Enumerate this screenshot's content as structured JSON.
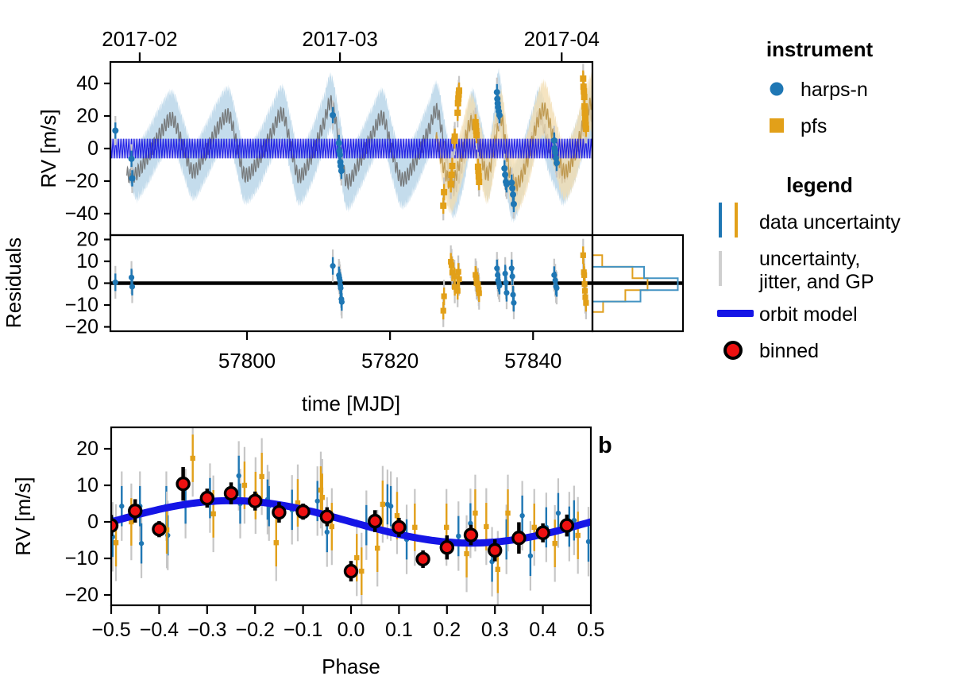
{
  "chart_data": {
    "type": "scatter",
    "panel_a": {
      "ylabel": "RV [m/s]",
      "resid_ylabel": "Residuals",
      "xlabel": "time [MJD]",
      "xlim": [
        57780.9,
        57848.3
      ],
      "ylim": [
        -53.2,
        53.2
      ],
      "yticks": [
        40,
        20,
        0,
        -20,
        -40
      ],
      "xticks": [
        57800,
        57820,
        57840
      ],
      "month_ticks": [
        {
          "mjd": 57785,
          "label": "2017-02"
        },
        {
          "mjd": 57813,
          "label": "2017-03"
        },
        {
          "mjd": 57844,
          "label": "2017-04"
        }
      ],
      "resid_ylim": [
        -22,
        22
      ],
      "resid_yticks": [
        20,
        10,
        0,
        -10,
        -20
      ],
      "orbit_model": {
        "amplitude_ms": 6.0,
        "period_days": 0.3693
      },
      "gp_band_halfwidth_ms": 12,
      "gp_fringe_ms": 7,
      "gp_blue_mean": [
        [
          57781.0,
          -4
        ],
        [
          57782.5,
          -12
        ],
        [
          57784.0,
          -17
        ],
        [
          57786.0,
          -6
        ],
        [
          57788.0,
          10
        ],
        [
          57789.6,
          18
        ],
        [
          57791.0,
          2
        ],
        [
          57792.4,
          -14
        ],
        [
          57794.0,
          -4
        ],
        [
          57796.0,
          13
        ],
        [
          57797.5,
          20
        ],
        [
          57798.6,
          2
        ],
        [
          57799.6,
          -16
        ],
        [
          57801.5,
          -8
        ],
        [
          57803.5,
          10
        ],
        [
          57805.0,
          21
        ],
        [
          57806.2,
          0
        ],
        [
          57807.2,
          -17
        ],
        [
          57809.0,
          -5
        ],
        [
          57810.8,
          16
        ],
        [
          57811.8,
          28
        ],
        [
          57813.0,
          2
        ],
        [
          57813.9,
          -20
        ],
        [
          57815.5,
          -10
        ],
        [
          57817.5,
          8
        ],
        [
          57819.0,
          19
        ],
        [
          57820.3,
          -2
        ],
        [
          57821.6,
          -19
        ],
        [
          57823.5,
          -8
        ],
        [
          57825.5,
          12
        ],
        [
          57826.6,
          23
        ],
        [
          57827.8,
          -4
        ],
        [
          57828.8,
          -25
        ],
        [
          57830.2,
          -8
        ],
        [
          57831.5,
          19
        ],
        [
          57832.6,
          2
        ],
        [
          57833.7,
          -15
        ],
        [
          57834.6,
          8
        ],
        [
          57835.2,
          31
        ],
        [
          57836.2,
          -6
        ],
        [
          57837.1,
          -27
        ],
        [
          57838.5,
          -14
        ],
        [
          57840.0,
          8
        ],
        [
          57840.9,
          20
        ],
        [
          57842.2,
          2
        ],
        [
          57843.4,
          -10
        ],
        [
          57844.2,
          -17
        ],
        [
          57845.6,
          -6
        ],
        [
          57847.0,
          12
        ],
        [
          57848.3,
          22
        ]
      ],
      "gp_blue_range": [
        57783.2,
        57848.3
      ],
      "gp_orange_mean": [
        [
          57826.3,
          8
        ],
        [
          57827.4,
          -10
        ],
        [
          57828.6,
          -22
        ],
        [
          57830.0,
          -4
        ],
        [
          57831.3,
          16
        ],
        [
          57832.4,
          2
        ],
        [
          57833.6,
          -16
        ],
        [
          57834.8,
          6
        ],
        [
          57835.6,
          18
        ],
        [
          57836.6,
          -12
        ],
        [
          57837.6,
          -22
        ],
        [
          57839.0,
          -10
        ],
        [
          57840.5,
          14
        ],
        [
          57841.6,
          24
        ],
        [
          57843.0,
          4
        ],
        [
          57844.3,
          -14
        ],
        [
          57845.8,
          -4
        ],
        [
          57847.2,
          18
        ],
        [
          57848.4,
          30
        ]
      ],
      "gp_orange_range": [
        57826.3,
        57848.3
      ],
      "series": {
        "harps": {
          "instrument": "harps-n",
          "rv": [
            [
              57781.6,
              11.0
            ],
            [
              57783.85,
              -6.3
            ],
            [
              57783.95,
              -18.3
            ],
            [
              57812.0,
              20.5
            ],
            [
              57812.85,
              3.4
            ],
            [
              57812.92,
              -1.5
            ],
            [
              57813.0,
              -3.9
            ],
            [
              57813.05,
              -8.3
            ],
            [
              57813.1,
              -10.7
            ],
            [
              57813.2,
              -13.7
            ],
            [
              57834.95,
              34.6
            ],
            [
              57835.0,
              30.5
            ],
            [
              57835.05,
              27.8
            ],
            [
              57835.1,
              25.4
            ],
            [
              57835.2,
              22.9
            ],
            [
              57835.3,
              20.5
            ],
            [
              57836.0,
              -12.2
            ],
            [
              57836.1,
              -16.1
            ],
            [
              57836.2,
              -20.5
            ],
            [
              57836.3,
              -22.0
            ],
            [
              57837.0,
              -21.0
            ],
            [
              57837.1,
              -24.4
            ],
            [
              57837.2,
              -28.3
            ],
            [
              57837.3,
              -34.1
            ],
            [
              57842.95,
              4.9
            ],
            [
              57843.0,
              0.0
            ],
            [
              57843.1,
              -2.4
            ],
            [
              57843.2,
              -5.9
            ],
            [
              57843.3,
              -8.8
            ]
          ],
          "rv_err": 5,
          "jitter_err": 9,
          "residuals": [
            [
              57781.6,
              0.4
            ],
            [
              57783.85,
              2.6
            ],
            [
              57783.95,
              -1.6
            ],
            [
              57812.0,
              7.9
            ],
            [
              57812.85,
              3.6
            ],
            [
              57812.92,
              2.4
            ],
            [
              57813.0,
              1.1
            ],
            [
              57813.05,
              -0.9
            ],
            [
              57813.1,
              -2.2
            ],
            [
              57813.2,
              -7.3
            ],
            [
              57813.25,
              -8.6
            ],
            [
              57834.95,
              6.8
            ],
            [
              57835.05,
              3.7
            ],
            [
              57835.1,
              1.3
            ],
            [
              57835.2,
              0.1
            ],
            [
              57835.3,
              -1.1
            ],
            [
              57836.1,
              4.4
            ],
            [
              57836.2,
              0.2
            ],
            [
              57836.3,
              -4.4
            ],
            [
              57837.0,
              6.8
            ],
            [
              57837.1,
              3.1
            ],
            [
              57837.2,
              -5.3
            ],
            [
              57837.3,
              -9.0
            ],
            [
              57842.95,
              3.7
            ],
            [
              57843.1,
              1.3
            ],
            [
              57843.2,
              -1.5
            ],
            [
              57843.3,
              -2.2
            ]
          ],
          "resid_err": 4,
          "resid_jitter_err": 7.5
        },
        "pfs": {
          "instrument": "pfs",
          "rv": [
            [
              57827.45,
              -35.1
            ],
            [
              57827.55,
              -26.8
            ],
            [
              57828.5,
              -22.0
            ],
            [
              57828.6,
              -16.1
            ],
            [
              57828.7,
              -10.7
            ],
            [
              57829.0,
              4.9
            ],
            [
              57829.05,
              7.3
            ],
            [
              57829.45,
              22.0
            ],
            [
              57829.5,
              27.8
            ],
            [
              57829.55,
              30.7
            ],
            [
              57829.6,
              33.2
            ],
            [
              57829.65,
              35.6
            ],
            [
              57831.95,
              16.1
            ],
            [
              57832.0,
              13.7
            ],
            [
              57832.05,
              10.7
            ],
            [
              57832.1,
              8.3
            ],
            [
              57832.3,
              -11.2
            ],
            [
              57832.35,
              -13.7
            ],
            [
              57832.4,
              -17.1
            ],
            [
              57832.45,
              -20.5
            ],
            [
              57847.0,
              43.0
            ],
            [
              57847.05,
              38.0
            ],
            [
              57847.1,
              35.1
            ],
            [
              57847.15,
              31.7
            ],
            [
              57847.2,
              25.9
            ],
            [
              57847.25,
              22.0
            ],
            [
              57847.3,
              18.5
            ],
            [
              57847.35,
              14.6
            ],
            [
              57847.4,
              12.2
            ]
          ],
          "rv_err": 5,
          "jitter_err": 9,
          "residuals": [
            [
              57827.45,
              -12.6
            ],
            [
              57827.55,
              -6.0
            ],
            [
              57828.5,
              9.8
            ],
            [
              57828.6,
              8.2
            ],
            [
              57828.7,
              4.9
            ],
            [
              57829.0,
              3.2
            ],
            [
              57829.05,
              -1.7
            ],
            [
              57829.45,
              -3.5
            ],
            [
              57829.55,
              5.2
            ],
            [
              57829.65,
              1.8
            ],
            [
              57831.95,
              3.8
            ],
            [
              57832.05,
              2.6
            ],
            [
              57832.1,
              0.0
            ],
            [
              57832.3,
              -0.6
            ],
            [
              57832.4,
              -2.9
            ],
            [
              57832.45,
              -4.6
            ],
            [
              57847.0,
              12.8
            ],
            [
              57847.1,
              5.0
            ],
            [
              57847.15,
              3.7
            ],
            [
              57847.2,
              -0.4
            ],
            [
              57847.25,
              -3.5
            ],
            [
              57847.3,
              -6.4
            ],
            [
              57847.4,
              -9.0
            ]
          ],
          "resid_err": 4,
          "resid_jitter_err": 7.5
        }
      },
      "resid_hist": {
        "bin_edges": [
          12.8,
          7.5,
          2.3,
          -3.2,
          -8.4,
          -13.2
        ],
        "harps_fraction": [
          0,
          0.58,
          0.96,
          0.54,
          0
        ],
        "pfs_fraction": [
          0.11,
          0.45,
          0.62,
          0.37,
          0.12
        ]
      }
    },
    "panel_b": {
      "tag": "b",
      "ylabel": "RV [m/s]",
      "xlabel": "Phase",
      "xlim": [
        -0.5,
        0.5
      ],
      "xticks": [
        -0.5,
        -0.4,
        -0.3,
        -0.2,
        -0.1,
        0.0,
        0.1,
        0.2,
        0.3,
        0.4,
        0.5
      ],
      "ylim": [
        -22.8,
        25.9
      ],
      "yticks": [
        20,
        10,
        0,
        -10,
        -20
      ],
      "model": {
        "amplitude_ms": 5.8
      },
      "harps_phase": [
        [
          -0.497,
          -4.1
        ],
        [
          -0.478,
          4.3
        ],
        [
          -0.44,
          4.3
        ],
        [
          -0.437,
          -5.9
        ],
        [
          -0.385,
          4.3
        ],
        [
          -0.382,
          -3.7
        ],
        [
          -0.345,
          5.0
        ],
        [
          -0.294,
          6.5
        ],
        [
          -0.234,
          12.6
        ],
        [
          -0.231,
          5.0
        ],
        [
          -0.174,
          6.1
        ],
        [
          -0.171,
          4.3
        ],
        [
          -0.123,
          3.3
        ],
        [
          -0.07,
          5.7
        ],
        [
          -0.05,
          -2.8
        ],
        [
          0.032,
          -0.9
        ],
        [
          0.076,
          4.8
        ],
        [
          0.083,
          4.3
        ],
        [
          0.116,
          -4.8
        ],
        [
          0.224,
          -3.9
        ],
        [
          0.249,
          -0.4
        ],
        [
          0.294,
          -10.9
        ],
        [
          0.324,
          -4.8
        ],
        [
          0.357,
          1.7
        ],
        [
          0.374,
          -9.3
        ],
        [
          0.407,
          -1.5
        ],
        [
          0.432,
          2.4
        ],
        [
          0.455,
          -1.3
        ],
        [
          0.465,
          0.4
        ],
        [
          0.495,
          -5.4
        ]
      ],
      "harps_err": 5.5,
      "harps_jitter_err": 9.5,
      "pfs_phase": [
        [
          -0.49,
          -5.7
        ],
        [
          -0.458,
          0.0
        ],
        [
          -0.384,
          -2.2
        ],
        [
          -0.33,
          17.4
        ],
        [
          -0.287,
          2.2
        ],
        [
          -0.222,
          10.0
        ],
        [
          -0.199,
          7.2
        ],
        [
          -0.186,
          12.4
        ],
        [
          -0.156,
          -5.7
        ],
        [
          -0.111,
          5.2
        ],
        [
          -0.063,
          8.7
        ],
        [
          -0.06,
          6.7
        ],
        [
          -0.04,
          -1.3
        ],
        [
          0.012,
          -9.8
        ],
        [
          0.022,
          -13.5
        ],
        [
          0.055,
          -7.2
        ],
        [
          0.066,
          4.8
        ],
        [
          0.096,
          1.7
        ],
        [
          0.133,
          -1.5
        ],
        [
          0.199,
          -1.5
        ],
        [
          0.241,
          -8.7
        ],
        [
          0.259,
          2.4
        ],
        [
          0.282,
          -1.3
        ],
        [
          0.306,
          -13.0
        ],
        [
          0.327,
          2.4
        ],
        [
          0.382,
          -1.5
        ],
        [
          0.425,
          -5.9
        ],
        [
          0.473,
          -3.7
        ]
      ],
      "pfs_err": 6.5,
      "pfs_jitter_err": 10.5,
      "binned": [
        [
          -0.5,
          -1.0,
          2.9
        ],
        [
          -0.45,
          3.0,
          3.2
        ],
        [
          -0.4,
          -2.0,
          2.2
        ],
        [
          -0.35,
          10.4,
          4.6
        ],
        [
          -0.3,
          6.5,
          2.6
        ],
        [
          -0.25,
          7.8,
          3.0
        ],
        [
          -0.2,
          5.7,
          2.6
        ],
        [
          -0.15,
          2.6,
          2.8
        ],
        [
          -0.1,
          2.8,
          2.2
        ],
        [
          -0.05,
          1.4,
          2.6
        ],
        [
          0.0,
          -13.5,
          2.8
        ],
        [
          0.05,
          0.2,
          3.0
        ],
        [
          0.1,
          -1.5,
          2.6
        ],
        [
          0.15,
          -10.2,
          2.4
        ],
        [
          0.2,
          -7.0,
          3.3
        ],
        [
          0.25,
          -3.6,
          2.8
        ],
        [
          0.3,
          -7.8,
          3.0
        ],
        [
          0.35,
          -4.4,
          4.3
        ],
        [
          0.4,
          -3.0,
          2.6
        ],
        [
          0.45,
          -1.0,
          3.0
        ]
      ]
    }
  },
  "legend": {
    "instrument_header": "instrument",
    "harps_label": "harps-n",
    "pfs_label": "pfs",
    "legend_header": "legend",
    "data_uncertainty_label": "data uncertainty",
    "jitter_label_line1": "uncertainty,",
    "jitter_label_line2": "jitter, and GP",
    "orbit_model_label": "orbit model",
    "binned_label": "binned"
  },
  "colors": {
    "harps": "#1f77b4",
    "pfs": "#e2a019",
    "model_blue": "#1515e6",
    "model_fill": "rgba(70,70,225,0.32)",
    "band_blue": "#b5d3e7",
    "band_orange": "#f2ddb2",
    "gp_line_blue_region": "#6f6f6f",
    "gp_line_orange_region": "#bb9347",
    "jitter_bar": "#c6c6c6",
    "hist_blue": "#4393c3",
    "hist_orange": "#e0a020",
    "binned_fill": "#ee1111",
    "binned_edge": "#000000",
    "zero_line": "#000000"
  }
}
